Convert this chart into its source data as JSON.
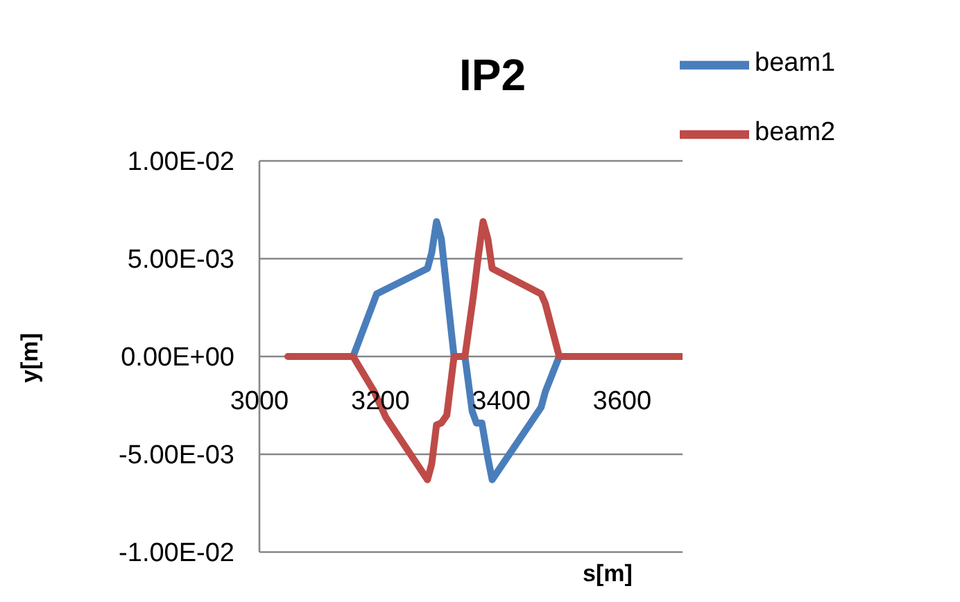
{
  "chart_data": {
    "type": "line",
    "title": "IP2",
    "xlabel": "s[m]",
    "ylabel": "y[m]",
    "xlim": [
      3000,
      3700
    ],
    "xticks": [
      3000,
      3200,
      3400,
      3600
    ],
    "ylim": [
      -0.01,
      0.01
    ],
    "yticks": [
      {
        "value": -0.01,
        "label": "-1.00E-02"
      },
      {
        "value": -0.005,
        "label": "-5.00E-03"
      },
      {
        "value": 0,
        "label": "0.00E+00"
      },
      {
        "value": 0.005,
        "label": "5.00E-03"
      },
      {
        "value": 0.01,
        "label": "1.00E-02"
      }
    ],
    "grid": "y",
    "legend": "top right",
    "marker": "none",
    "line_style": "solid",
    "series": [
      {
        "name": "beam1",
        "color": "#4a7ebb",
        "x": [
          3155,
          3194,
          3278,
          3285,
          3293,
          3301,
          3311,
          3322,
          3340,
          3352,
          3359,
          3368,
          3378,
          3385,
          3466,
          3473,
          3496
        ],
        "values": [
          0,
          0.0032,
          0.0045,
          0.0053,
          0.0069,
          0.006,
          0.0031,
          0,
          0,
          -0.0028,
          -0.0034,
          -0.0034,
          -0.0052,
          -0.0063,
          -0.0026,
          -0.0018,
          0
        ]
      },
      {
        "name": "beam2",
        "color": "#be4b48",
        "x": [
          3047,
          3155,
          3190,
          3209,
          3278,
          3285,
          3293,
          3301,
          3310,
          3322,
          3340,
          3354,
          3362,
          3370,
          3378,
          3385,
          3466,
          3473,
          3496,
          3700
        ],
        "values": [
          0,
          0,
          -0.0018,
          -0.0031,
          -0.0063,
          -0.0055,
          -0.0035,
          -0.0034,
          -0.003,
          0,
          0,
          0.0031,
          0.0051,
          0.0069,
          0.006,
          0.0045,
          0.0032,
          0.0027,
          0,
          0
        ]
      }
    ]
  }
}
